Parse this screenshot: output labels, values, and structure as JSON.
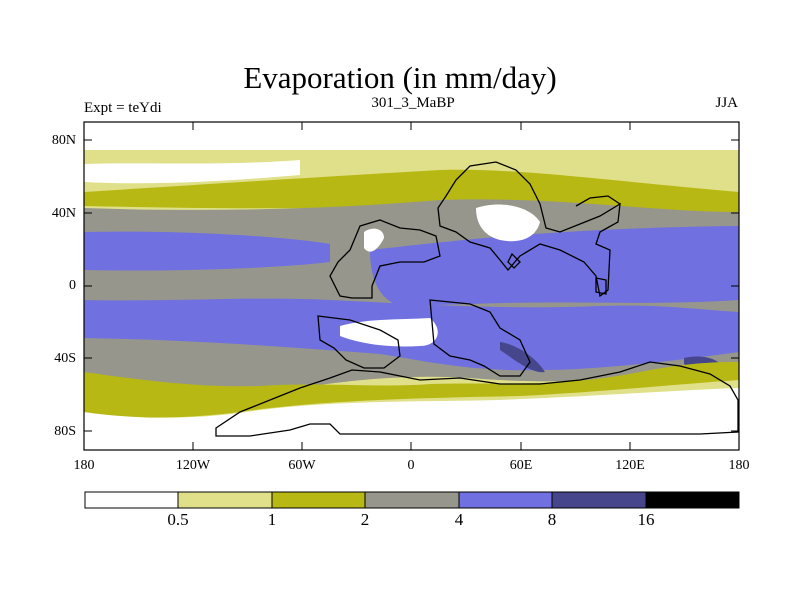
{
  "title": "Evaporation (in mm/day)",
  "left_label": "Expt = teYdi",
  "center_label": "301_3_MaBP",
  "right_label": "JJA",
  "lat_labels": [
    "80N",
    "40N",
    "0",
    "40S",
    "80S"
  ],
  "lon_labels": [
    "180",
    "120W",
    "60W",
    "0",
    "60E",
    "120E",
    "180"
  ],
  "colorbar": {
    "levels": [
      "0.5",
      "1",
      "2",
      "4",
      "8",
      "16"
    ],
    "colors": [
      "#ffffff",
      "#e0e08a",
      "#b8b814",
      "#96968c",
      "#7070e0",
      "#46468c",
      "#000000"
    ]
  }
}
